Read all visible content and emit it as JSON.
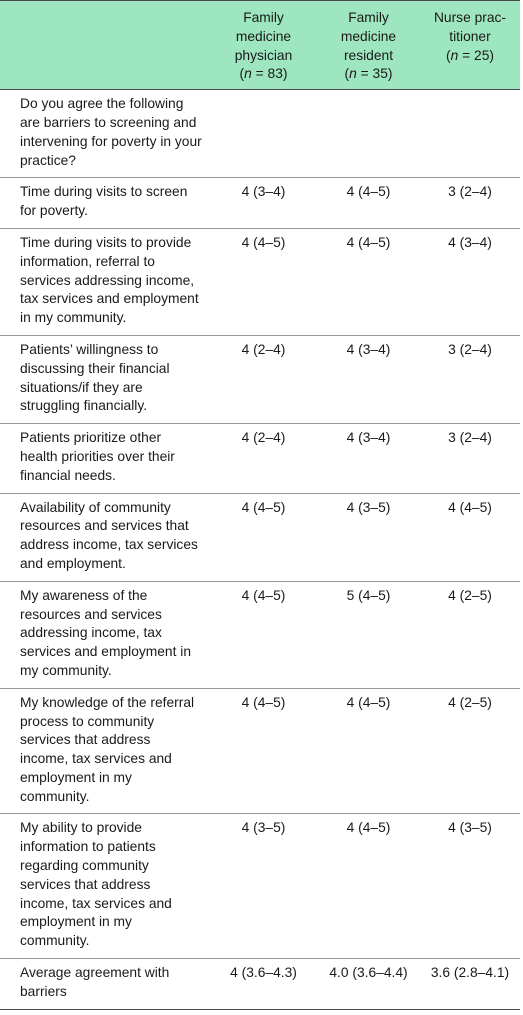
{
  "columns": [
    {
      "line1": "Family",
      "line2": "medicine",
      "line3": "physician",
      "n_label": "n",
      "n_value": " = 83)"
    },
    {
      "line1": "Family",
      "line2": "medicine",
      "line3": "resident",
      "n_label": "n",
      "n_value": " = 35)"
    },
    {
      "line1": "Nurse prac-",
      "line2": "titioner",
      "line3": "",
      "n_label": "n",
      "n_value": " = 25)"
    }
  ],
  "intro": "Do you agree the following are barriers to screening and intervening for poverty in your practice?",
  "rows": [
    {
      "label": "Time during visits to screen for poverty.",
      "physician": "4 (3–4)",
      "resident": "4 (4–5)",
      "nurse": "3 (2–4)"
    },
    {
      "label": "Time during visits to provide information, referral to services addressing income, tax services and employment in my community.",
      "physician": "4 (4–5)",
      "resident": "4 (4–5)",
      "nurse": "4 (3–4)"
    },
    {
      "label": "Patients’ willingness to discussing their financial situations/if they are struggling financially.",
      "physician": "4 (2–4)",
      "resident": "4 (3–4)",
      "nurse": "3 (2–4)"
    },
    {
      "label": "Patients prioritize other health priorities over their financial needs.",
      "physician": "4 (2–4)",
      "resident": "4 (3–4)",
      "nurse": "3 (2–4)"
    },
    {
      "label": "Availability of community resources and services that address income, tax services and employment.",
      "physician": "4 (4–5)",
      "resident": "4 (3–5)",
      "nurse": "4 (4–5)"
    },
    {
      "label": "My awareness of the resources and services addressing income, tax services and employment in my community.",
      "physician": "4 (4–5)",
      "resident": "5 (4–5)",
      "nurse": "4 (2–5)"
    },
    {
      "label": "My knowledge of the referral process to community services that address income, tax services and employment in my community.",
      "physician": "4 (4–5)",
      "resident": "4 (4–5)",
      "nurse": "4 (2–5)"
    },
    {
      "label": "My ability to provide information to patients regarding community services that address income, tax services and employment in my community.",
      "physician": "4 (3–5)",
      "resident": "4 (4–5)",
      "nurse": "4 (3–5)"
    },
    {
      "label": "Average agreement with barriers",
      "physician": "4 (3.6–4.3)",
      "resident": "4.0 (3.6–4.4)",
      "nurse": "3.6 (2.8–4.1)"
    }
  ],
  "colors": {
    "header_bg": "#9ee6c0"
  }
}
